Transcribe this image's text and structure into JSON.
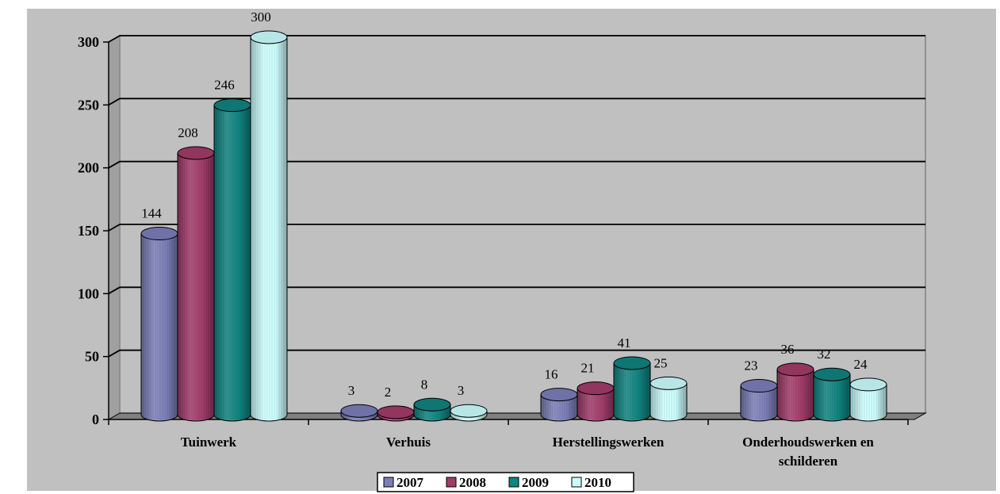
{
  "chart_data": {
    "type": "bar",
    "title": "",
    "xlabel": "",
    "ylabel": "",
    "ylim": [
      0,
      300
    ],
    "yticks": [
      "0",
      "50",
      "100",
      "150",
      "200",
      "250",
      "300"
    ],
    "grid": true,
    "legend_position": "bottom",
    "categories": [
      "Tuinwerk",
      "Verhuis",
      "Herstellingswerken",
      "Onderhoudswerken en schilderen"
    ],
    "series": [
      {
        "name": "2007",
        "values": [
          144,
          3,
          16,
          23
        ],
        "labels": [
          "144",
          "3",
          "16",
          "23"
        ],
        "color": "#7b7fb8"
      },
      {
        "name": "2008",
        "values": [
          208,
          2,
          21,
          36
        ],
        "labels": [
          "208",
          "2",
          "21",
          "36"
        ],
        "color": "#a23b6a"
      },
      {
        "name": "2009",
        "values": [
          246,
          8,
          41,
          32
        ],
        "labels": [
          "246",
          "8",
          "41",
          "32"
        ],
        "color": "#0f8480"
      },
      {
        "name": "2010",
        "values": [
          300,
          3,
          25,
          24
        ],
        "labels": [
          "300",
          "3",
          "25",
          "24"
        ],
        "color": "#ccffff"
      }
    ],
    "colors": {
      "background": "#c0c0c0",
      "wall": "#c0c0c0",
      "floor": "#808080",
      "gridline": "#000000"
    }
  }
}
